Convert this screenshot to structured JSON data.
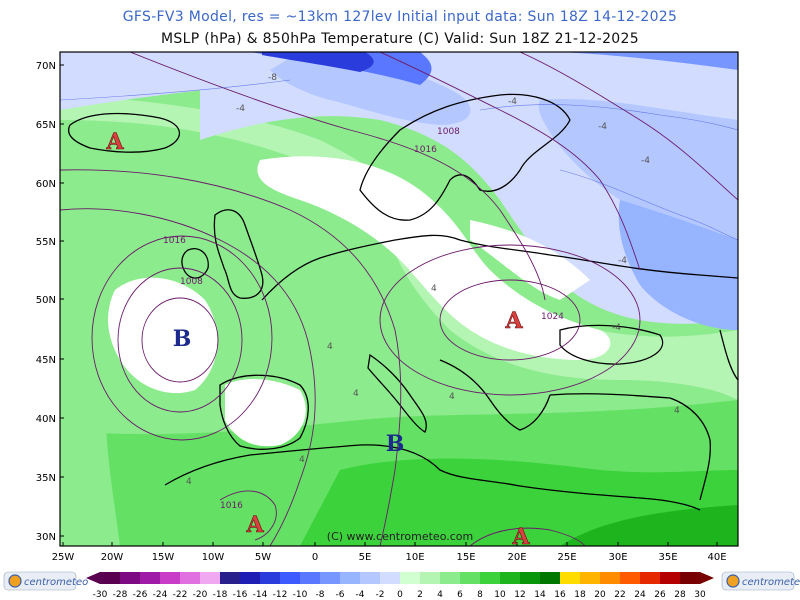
{
  "header": {
    "line1": "GFS-FV3 Model, res = ~13km 127lev    Initial input data: Sun 18Z 14-12-2025",
    "line2": "MSLP (hPa) & 850hPa Temperature (C)   Valid: Sun 18Z 21-12-2025"
  },
  "axes": {
    "lat_labels": [
      "70N",
      "65N",
      "60N",
      "55N",
      "50N",
      "45N",
      "40N",
      "35N",
      "30N"
    ],
    "lon_labels": [
      "25W",
      "20W",
      "15W",
      "10W",
      "5W",
      "0",
      "5E",
      "10E",
      "15E",
      "20E",
      "25E",
      "30E",
      "35E",
      "40E"
    ]
  },
  "pressure_centers": [
    {
      "type": "high",
      "letter": "A",
      "color": "#d94040"
    },
    {
      "type": "low",
      "letter": "B",
      "color": "#1b2a8c"
    },
    {
      "type": "low",
      "letter": "B",
      "color": "#1b2a8c"
    },
    {
      "type": "high",
      "letter": "A",
      "color": "#d94040"
    },
    {
      "type": "high",
      "letter": "A",
      "color": "#d94040"
    },
    {
      "type": "high",
      "letter": "A",
      "color": "#d94040"
    }
  ],
  "isobar_labels": [
    "1008",
    "1016",
    "1016",
    "1008",
    "1024",
    "1016"
  ],
  "temp_labels": [
    "-4",
    "-4",
    "-4",
    "-4",
    "-4",
    "-4",
    "4",
    "4",
    "4",
    "4",
    "4",
    "4",
    "4",
    "-8"
  ],
  "copyright": "(C) www.centrometeo.com",
  "colorbar": {
    "ticks": [
      "-30",
      "-28",
      "-26",
      "-24",
      "-22",
      "-20",
      "-18",
      "-16",
      "-14",
      "-12",
      "-10",
      "-8",
      "-6",
      "-4",
      "-2",
      "0",
      "2",
      "4",
      "6",
      "8",
      "10",
      "12",
      "14",
      "16",
      "18",
      "20",
      "22",
      "24",
      "26",
      "28",
      "30"
    ],
    "colors": [
      "#5a0050",
      "#7d0a82",
      "#a01aa8",
      "#c83cc8",
      "#e070e0",
      "#f0a8f0",
      "#281e8c",
      "#1e1eb4",
      "#2a3cdc",
      "#3c5aff",
      "#5a78ff",
      "#7896ff",
      "#96b4ff",
      "#b4c8ff",
      "#d2dcff",
      "#ffffff",
      "#d2ffd2",
      "#b4f5b4",
      "#8ceb8c",
      "#64e164",
      "#3cd23c",
      "#1eb41e",
      "#0a960a",
      "#007800",
      "#ffdc00",
      "#ffb400",
      "#ff8c00",
      "#ff5a00",
      "#e62800",
      "#b40000",
      "#780000"
    ],
    "logo_left": "centrometeo",
    "logo_right": "centrometeo"
  }
}
